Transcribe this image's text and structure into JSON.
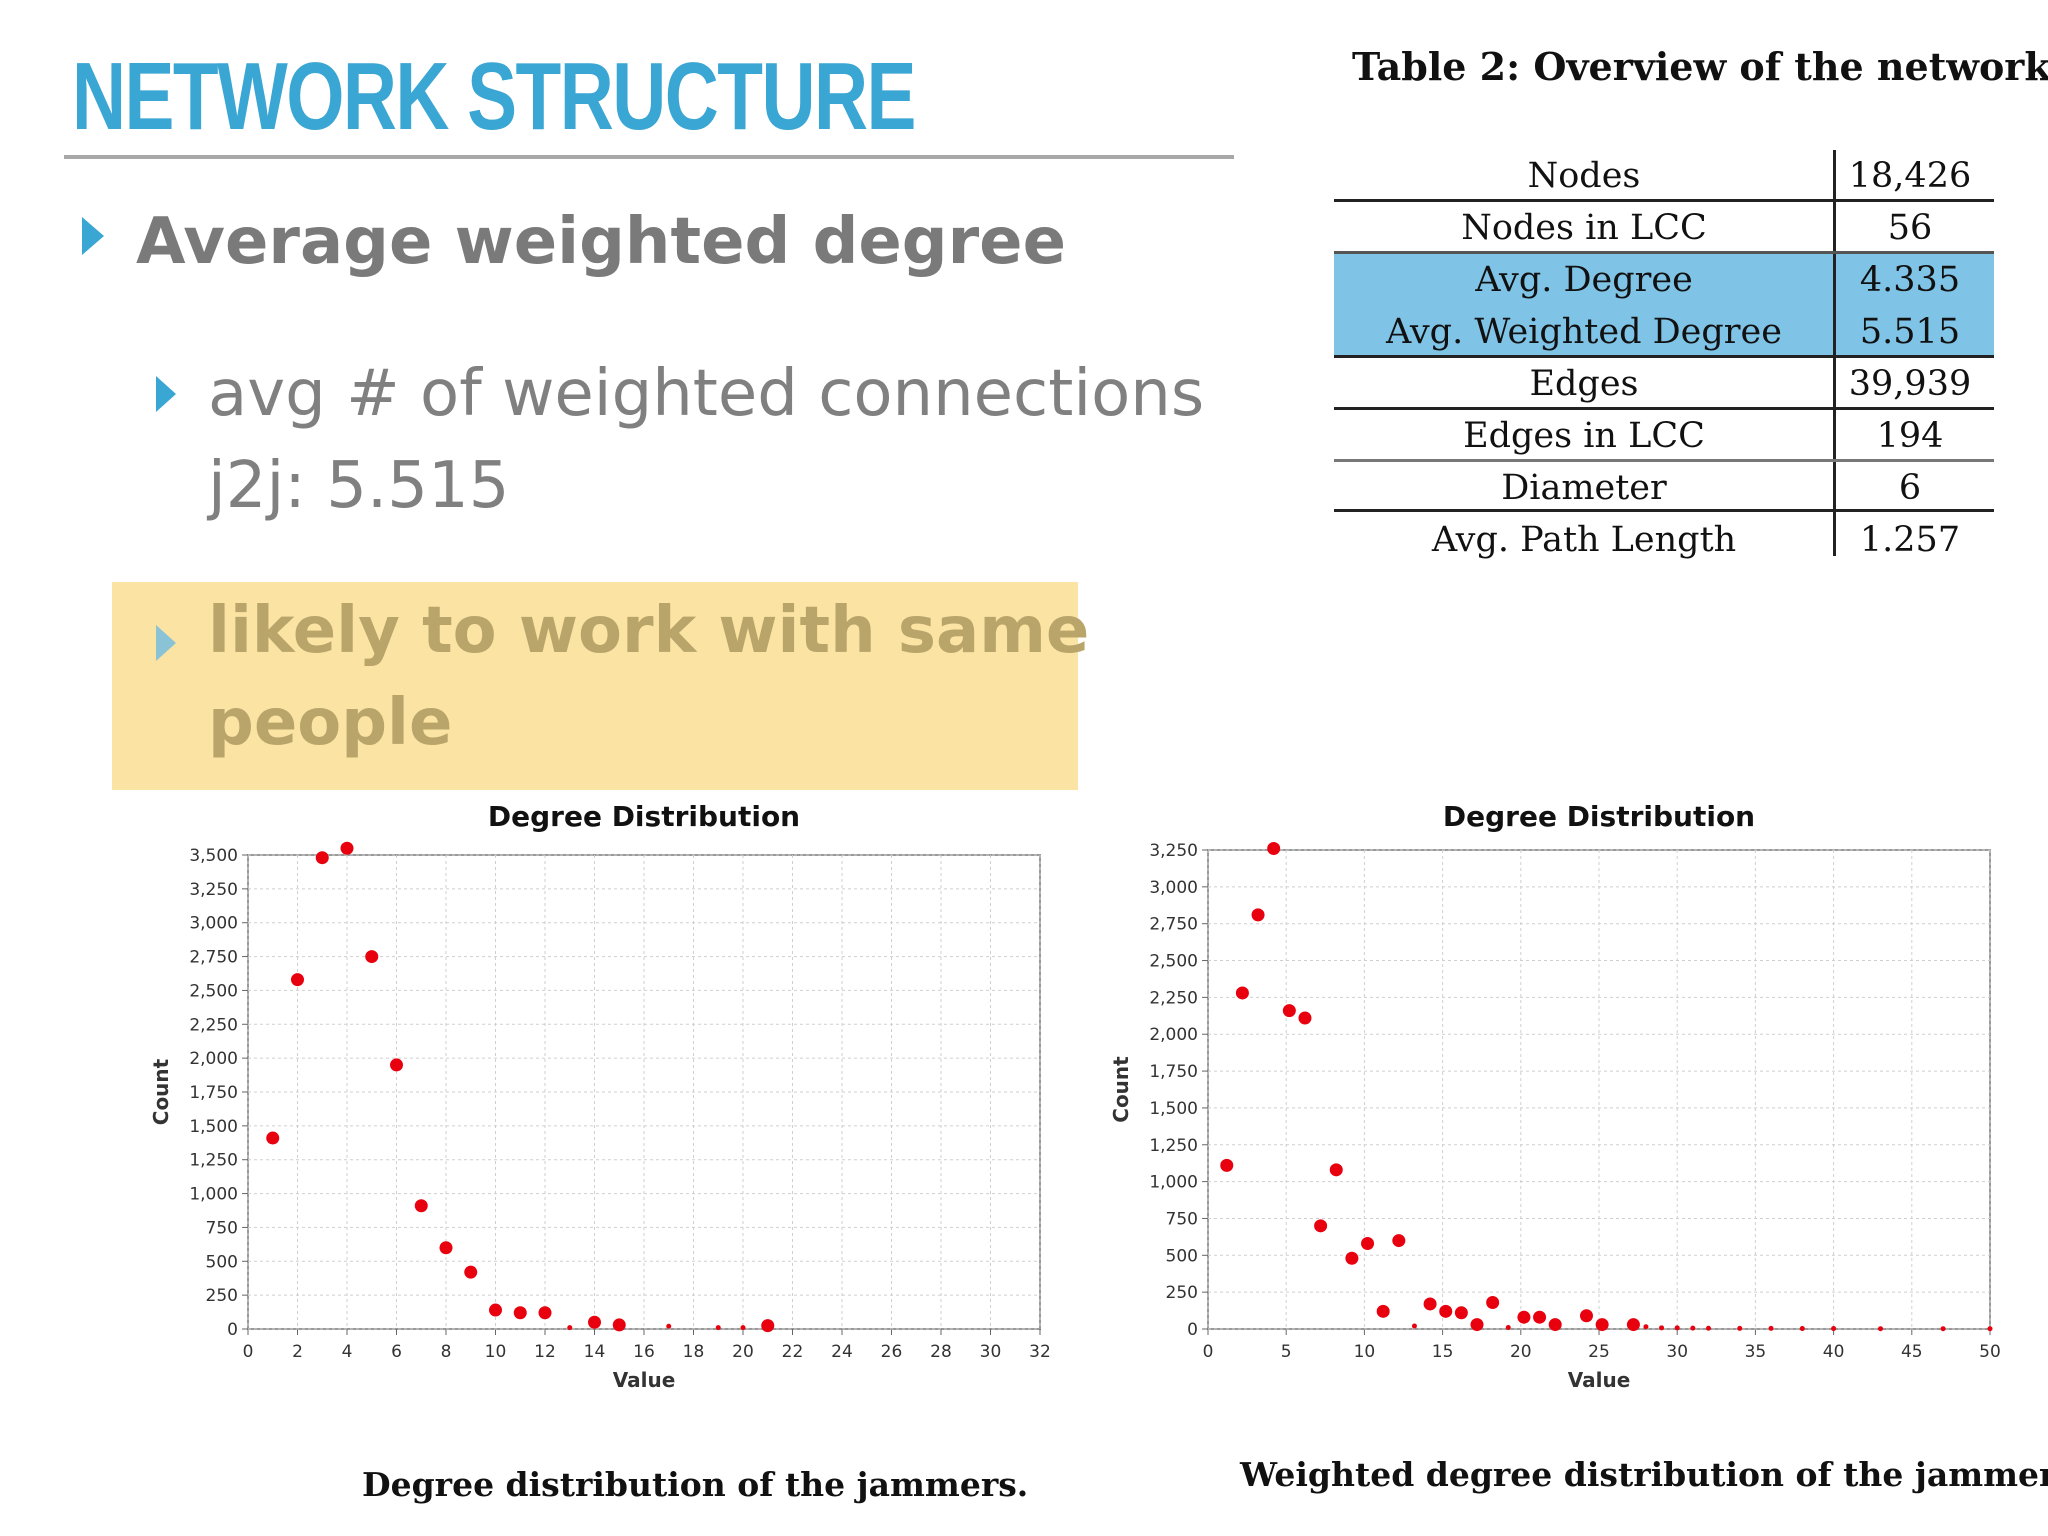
{
  "slide": {
    "title": "NETWORK STRUCTURE",
    "bullets": {
      "main": "Average weighted degree",
      "sub_line1": "avg # of weighted connections",
      "sub_line2": "j2j: 5.515",
      "highlight_line1": "likely to work with same",
      "highlight_line2": "people"
    }
  },
  "table": {
    "caption": "Table 2: Overview of the network",
    "rows": [
      {
        "label": "Nodes",
        "value": "18,426"
      },
      {
        "label": "Nodes in LCC",
        "value": "56"
      },
      {
        "label": "Avg. Degree",
        "value": "4.335"
      },
      {
        "label": "Avg. Weighted Degree",
        "value": "5.515"
      },
      {
        "label": "Edges",
        "value": "39,939"
      },
      {
        "label": "Edges in LCC",
        "value": "194"
      },
      {
        "label": "Diameter",
        "value": "6"
      },
      {
        "label": "Avg. Path Length",
        "value": "1.257"
      }
    ],
    "highlight_color": "#7fc3e6"
  },
  "figures": {
    "left_caption": "Degree distribution of the jammers.",
    "right_caption": "Weighted degree distribution of the jammers."
  },
  "colors": {
    "accent": "#3aa6d3",
    "highlight_box": "#fbe3a3",
    "point": "#e8000f"
  },
  "chart_data": [
    {
      "type": "scatter",
      "title": "Degree Distribution",
      "xlabel": "Value",
      "ylabel": "Count",
      "xlim": [
        0,
        32
      ],
      "ylim": [
        0,
        3500
      ],
      "xticks": [
        "0",
        "2",
        "4",
        "6",
        "8",
        "10",
        "12",
        "14",
        "16",
        "18",
        "20",
        "22",
        "24",
        "26",
        "28",
        "30",
        "32"
      ],
      "yticks": [
        "0",
        "250",
        "500",
        "750",
        "1,000",
        "1,250",
        "1,500",
        "1,750",
        "2,000",
        "2,250",
        "2,500",
        "2,750",
        "3,000",
        "3,250",
        "3,500"
      ],
      "grid": true,
      "series": [
        {
          "x": [
            1,
            2,
            3,
            4,
            5,
            6,
            7,
            8,
            9,
            10,
            11,
            12,
            13,
            14,
            15,
            17,
            19,
            20,
            21
          ],
          "y": [
            1410,
            2580,
            3480,
            3550,
            2750,
            1950,
            910,
            600,
            420,
            140,
            120,
            120,
            10,
            50,
            30,
            20,
            10,
            10,
            25
          ]
        }
      ]
    },
    {
      "type": "scatter",
      "title": "Degree Distribution",
      "xlabel": "Value",
      "ylabel": "Count",
      "xlim": [
        0,
        50
      ],
      "ylim": [
        0,
        3250
      ],
      "xticks": [
        "0",
        "5",
        "10",
        "15",
        "20",
        "25",
        "30",
        "35",
        "40",
        "45",
        "50"
      ],
      "yticks": [
        "0",
        "250",
        "500",
        "750",
        "1,000",
        "1,250",
        "1,500",
        "1,750",
        "2,000",
        "2,250",
        "2,500",
        "2,750",
        "3,000",
        "3,250"
      ],
      "grid": true,
      "series": [
        {
          "x": [
            1.2,
            2.2,
            3.2,
            4.2,
            5.2,
            6.2,
            7.2,
            8.2,
            9.2,
            10.2,
            11.2,
            12.2,
            13.2,
            14.2,
            15.2,
            16.2,
            17.2,
            18.2,
            19.2,
            20.2,
            21.2,
            22.2,
            24.2,
            25.2,
            27.2,
            28,
            29,
            30,
            31,
            32,
            34,
            36,
            38,
            40,
            43,
            47,
            50
          ],
          "y": [
            1110,
            2280,
            2810,
            3260,
            2160,
            2110,
            700,
            1080,
            480,
            580,
            120,
            600,
            20,
            170,
            120,
            110,
            30,
            180,
            10,
            80,
            80,
            30,
            90,
            30,
            30,
            15,
            8,
            8,
            6,
            5,
            4,
            4,
            3,
            3,
            2,
            2,
            2
          ]
        }
      ]
    }
  ]
}
